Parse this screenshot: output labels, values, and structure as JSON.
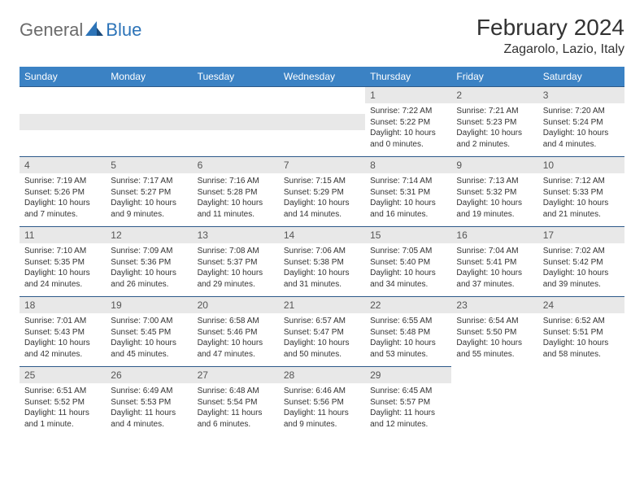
{
  "brand": {
    "part1": "General",
    "part2": "Blue"
  },
  "title": "February 2024",
  "location": "Zagarolo, Lazio, Italy",
  "colors": {
    "header_bg": "#3b82c4",
    "header_text": "#ffffff",
    "daynum_bg": "#e8e8e8",
    "border": "#2d5a8a",
    "brand_gray": "#6b6b6b",
    "brand_blue": "#2d74b8"
  },
  "weekdays": [
    "Sunday",
    "Monday",
    "Tuesday",
    "Wednesday",
    "Thursday",
    "Friday",
    "Saturday"
  ],
  "weeks": [
    [
      null,
      null,
      null,
      null,
      {
        "n": "1",
        "sr": "7:22 AM",
        "ss": "5:22 PM",
        "dl": "10 hours and 0 minutes."
      },
      {
        "n": "2",
        "sr": "7:21 AM",
        "ss": "5:23 PM",
        "dl": "10 hours and 2 minutes."
      },
      {
        "n": "3",
        "sr": "7:20 AM",
        "ss": "5:24 PM",
        "dl": "10 hours and 4 minutes."
      }
    ],
    [
      {
        "n": "4",
        "sr": "7:19 AM",
        "ss": "5:26 PM",
        "dl": "10 hours and 7 minutes."
      },
      {
        "n": "5",
        "sr": "7:17 AM",
        "ss": "5:27 PM",
        "dl": "10 hours and 9 minutes."
      },
      {
        "n": "6",
        "sr": "7:16 AM",
        "ss": "5:28 PM",
        "dl": "10 hours and 11 minutes."
      },
      {
        "n": "7",
        "sr": "7:15 AM",
        "ss": "5:29 PM",
        "dl": "10 hours and 14 minutes."
      },
      {
        "n": "8",
        "sr": "7:14 AM",
        "ss": "5:31 PM",
        "dl": "10 hours and 16 minutes."
      },
      {
        "n": "9",
        "sr": "7:13 AM",
        "ss": "5:32 PM",
        "dl": "10 hours and 19 minutes."
      },
      {
        "n": "10",
        "sr": "7:12 AM",
        "ss": "5:33 PM",
        "dl": "10 hours and 21 minutes."
      }
    ],
    [
      {
        "n": "11",
        "sr": "7:10 AM",
        "ss": "5:35 PM",
        "dl": "10 hours and 24 minutes."
      },
      {
        "n": "12",
        "sr": "7:09 AM",
        "ss": "5:36 PM",
        "dl": "10 hours and 26 minutes."
      },
      {
        "n": "13",
        "sr": "7:08 AM",
        "ss": "5:37 PM",
        "dl": "10 hours and 29 minutes."
      },
      {
        "n": "14",
        "sr": "7:06 AM",
        "ss": "5:38 PM",
        "dl": "10 hours and 31 minutes."
      },
      {
        "n": "15",
        "sr": "7:05 AM",
        "ss": "5:40 PM",
        "dl": "10 hours and 34 minutes."
      },
      {
        "n": "16",
        "sr": "7:04 AM",
        "ss": "5:41 PM",
        "dl": "10 hours and 37 minutes."
      },
      {
        "n": "17",
        "sr": "7:02 AM",
        "ss": "5:42 PM",
        "dl": "10 hours and 39 minutes."
      }
    ],
    [
      {
        "n": "18",
        "sr": "7:01 AM",
        "ss": "5:43 PM",
        "dl": "10 hours and 42 minutes."
      },
      {
        "n": "19",
        "sr": "7:00 AM",
        "ss": "5:45 PM",
        "dl": "10 hours and 45 minutes."
      },
      {
        "n": "20",
        "sr": "6:58 AM",
        "ss": "5:46 PM",
        "dl": "10 hours and 47 minutes."
      },
      {
        "n": "21",
        "sr": "6:57 AM",
        "ss": "5:47 PM",
        "dl": "10 hours and 50 minutes."
      },
      {
        "n": "22",
        "sr": "6:55 AM",
        "ss": "5:48 PM",
        "dl": "10 hours and 53 minutes."
      },
      {
        "n": "23",
        "sr": "6:54 AM",
        "ss": "5:50 PM",
        "dl": "10 hours and 55 minutes."
      },
      {
        "n": "24",
        "sr": "6:52 AM",
        "ss": "5:51 PM",
        "dl": "10 hours and 58 minutes."
      }
    ],
    [
      {
        "n": "25",
        "sr": "6:51 AM",
        "ss": "5:52 PM",
        "dl": "11 hours and 1 minute."
      },
      {
        "n": "26",
        "sr": "6:49 AM",
        "ss": "5:53 PM",
        "dl": "11 hours and 4 minutes."
      },
      {
        "n": "27",
        "sr": "6:48 AM",
        "ss": "5:54 PM",
        "dl": "11 hours and 6 minutes."
      },
      {
        "n": "28",
        "sr": "6:46 AM",
        "ss": "5:56 PM",
        "dl": "11 hours and 9 minutes."
      },
      {
        "n": "29",
        "sr": "6:45 AM",
        "ss": "5:57 PM",
        "dl": "11 hours and 12 minutes."
      },
      null,
      null
    ]
  ],
  "labels": {
    "sunrise": "Sunrise:",
    "sunset": "Sunset:",
    "daylight": "Daylight:"
  }
}
